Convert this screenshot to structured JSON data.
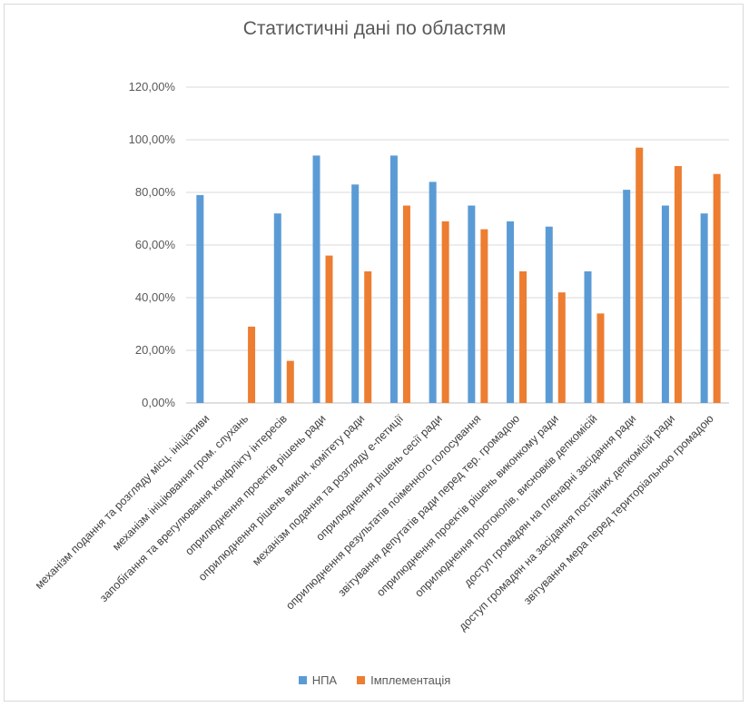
{
  "chart_data": {
    "type": "bar",
    "title": "Статистичні дані по областям",
    "ylim": [
      0,
      1.2
    ],
    "yticks": [
      "0,00%",
      "20,00%",
      "40,00%",
      "60,00%",
      "80,00%",
      "100,00%",
      "120,00%"
    ],
    "grid": true,
    "legend_position": "bottom",
    "categories": [
      "механізм подання та розгляду місц. ініціативи",
      "механізм ініціювання гром. слухань",
      "запобігання та врегулювання конфлікту інтересів",
      "оприлюднення проектів рішень ради",
      "оприлюднення рішень викон. комітету ради",
      "механізм подання та розгляду е-петиції",
      "оприлюднення рішень сесії ради",
      "оприлюднення результатів поіменного голосування",
      "звітування депутатів ради перед тер. громадою",
      "оприлюднення проектів рішень виконкому ради",
      "оприлюднення протоколів, висновків депкомісій",
      "доступ громадян на пленарні засідання ради",
      "доступ громадян на засідання постійних депкомісій ради",
      "звітування мера перед територіальною громадою"
    ],
    "series": [
      {
        "name": "НПА",
        "color": "#5b9bd5",
        "values": [
          0.79,
          0,
          0.72,
          0.94,
          0.83,
          0.94,
          0.84,
          0.75,
          0.69,
          0.67,
          0.5,
          0.81,
          0.75,
          0.72
        ]
      },
      {
        "name": "Імплементація",
        "color": "#ed7d31",
        "values": [
          0,
          0.29,
          0.16,
          0.56,
          0.5,
          0.75,
          0.69,
          0.66,
          0.5,
          0.42,
          0.34,
          0.97,
          0.9,
          0.87
        ]
      }
    ]
  }
}
